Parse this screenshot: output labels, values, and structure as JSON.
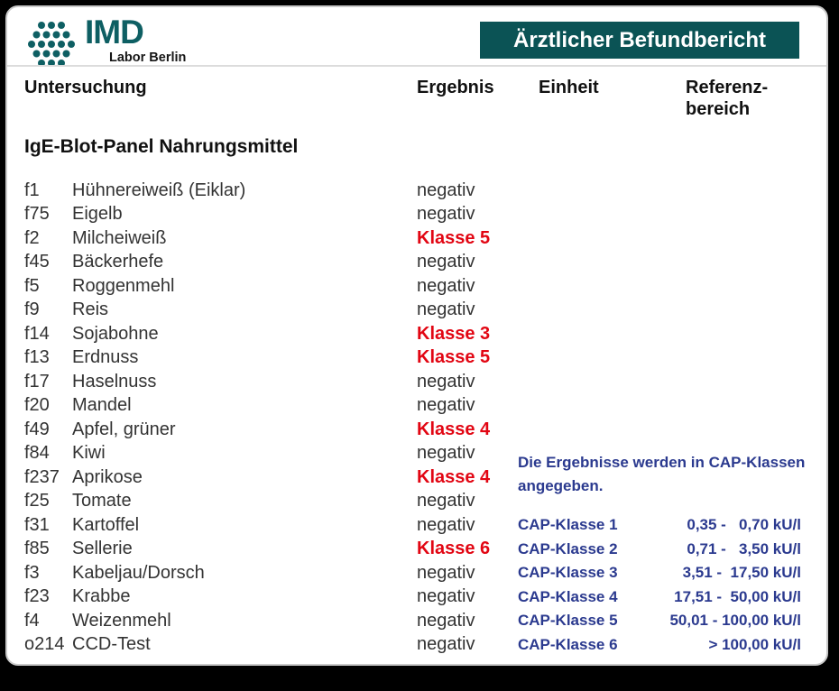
{
  "colors": {
    "teal": "#0e5f63",
    "banner_teal": "#0b5355",
    "positive_red": "#e20613",
    "cap_blue": "#2b3a8f"
  },
  "header": {
    "logo_brand": "IMD",
    "logo_sub": "Labor Berlin",
    "banner": "Ärztlicher Befundbericht"
  },
  "table": {
    "col_untersuchung": "Untersuchung",
    "col_ergebnis": "Ergebnis",
    "col_einheit": "Einheit",
    "col_referenz_line1": "Referenz-",
    "col_referenz_line2": "bereich",
    "section_title": "IgE-Blot-Panel Nahrungsmittel",
    "rows": [
      {
        "code": "f1",
        "name": "Hühnereiweiß (Eiklar)",
        "result": "negativ",
        "positive": false
      },
      {
        "code": "f75",
        "name": "Eigelb",
        "result": "negativ",
        "positive": false
      },
      {
        "code": "f2",
        "name": "Milcheiweiß",
        "result": "Klasse 5",
        "positive": true
      },
      {
        "code": "f45",
        "name": "Bäckerhefe",
        "result": "negativ",
        "positive": false
      },
      {
        "code": "f5",
        "name": "Roggenmehl",
        "result": "negativ",
        "positive": false
      },
      {
        "code": "f9",
        "name": "Reis",
        "result": "negativ",
        "positive": false
      },
      {
        "code": "f14",
        "name": "Sojabohne",
        "result": "Klasse 3",
        "positive": true
      },
      {
        "code": "f13",
        "name": "Erdnuss",
        "result": "Klasse 5",
        "positive": true
      },
      {
        "code": "f17",
        "name": "Haselnuss",
        "result": "negativ",
        "positive": false
      },
      {
        "code": "f20",
        "name": "Mandel",
        "result": "negativ",
        "positive": false
      },
      {
        "code": "f49",
        "name": "Apfel, grüner",
        "result": "Klasse 4",
        "positive": true
      },
      {
        "code": "f84",
        "name": "Kiwi",
        "result": "negativ",
        "positive": false
      },
      {
        "code": "f237",
        "name": "Aprikose",
        "result": "Klasse 4",
        "positive": true
      },
      {
        "code": "f25",
        "name": "Tomate",
        "result": "negativ",
        "positive": false
      },
      {
        "code": "f31",
        "name": "Kartoffel",
        "result": "negativ",
        "positive": false
      },
      {
        "code": "f85",
        "name": "Sellerie",
        "result": "Klasse 6",
        "positive": true
      },
      {
        "code": "f3",
        "name": "Kabeljau/Dorsch",
        "result": "negativ",
        "positive": false
      },
      {
        "code": "f23",
        "name": "Krabbe",
        "result": "negativ",
        "positive": false
      },
      {
        "code": "f4",
        "name": "Weizenmehl",
        "result": "negativ",
        "positive": false
      },
      {
        "code": "o214",
        "name": "CCD-Test",
        "result": "negativ",
        "positive": false
      }
    ]
  },
  "cap_info": {
    "note_line1": "Die Ergebnisse werden in CAP-Klassen",
    "note_line2": "angegeben.",
    "classes": [
      {
        "label": "CAP-Klasse 1",
        "range": "0,35 -   0,70 kU/l"
      },
      {
        "label": "CAP-Klasse 2",
        "range": "0,71 -   3,50 kU/l"
      },
      {
        "label": "CAP-Klasse 3",
        "range": "3,51 -  17,50 kU/l"
      },
      {
        "label": "CAP-Klasse 4",
        "range": "17,51 -  50,00 kU/l"
      },
      {
        "label": "CAP-Klasse 5",
        "range": "50,01 - 100,00 kU/l"
      },
      {
        "label": "CAP-Klasse 6",
        "range": "> 100,00 kU/l"
      }
    ]
  }
}
